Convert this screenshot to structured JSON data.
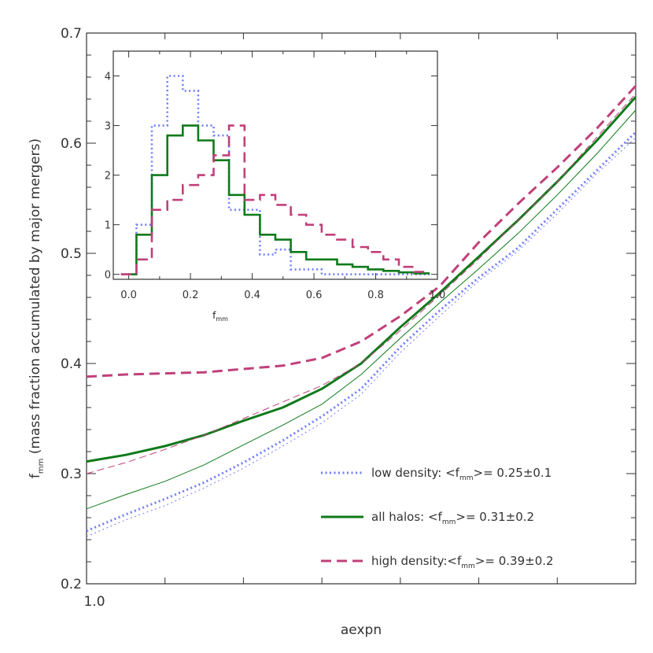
{
  "colors": {
    "low_density": "#6f7dff",
    "all_halos": "#0f7a1a",
    "high_density": "#c0407a",
    "axis": "#333333"
  },
  "chart_data": [
    {
      "type": "line",
      "xlabel": "aexpn",
      "ylabel": "f",
      "ylabel_sub": "mm",
      "ylabel_rest": " (mass fraction accumulated by major mergers)",
      "xlim": [
        1.0,
        8.0
      ],
      "ylim": [
        0.2,
        0.7
      ],
      "x_ticks": [
        {
          "value": 1.0,
          "label": "1.0"
        }
      ],
      "x_minor_ticks": [
        2,
        3,
        4,
        5,
        6,
        7
      ],
      "y_ticks": [
        {
          "value": 0.2,
          "label": "0.2"
        },
        {
          "value": 0.3,
          "label": "0.3"
        },
        {
          "value": 0.4,
          "label": "0.4"
        },
        {
          "value": 0.5,
          "label": "0.5"
        },
        {
          "value": 0.6,
          "label": "0.6"
        },
        {
          "value": 0.7,
          "label": "0.7"
        }
      ],
      "x": [
        1.0,
        1.5,
        2.0,
        2.5,
        3.0,
        3.5,
        4.0,
        4.5,
        5.0,
        5.5,
        6.0,
        6.5,
        7.0,
        7.5,
        8.0
      ],
      "series": [
        {
          "key": "low_density",
          "style": "dotted",
          "weight": "thick",
          "legend_label": "low density: <f",
          "legend_sub": "mm",
          "legend_rest": ">= 0.25±0.1",
          "values": [
            0.248,
            0.263,
            0.277,
            0.292,
            0.31,
            0.33,
            0.352,
            0.377,
            0.415,
            0.448,
            0.478,
            0.505,
            0.54,
            0.575,
            0.61
          ]
        },
        {
          "key": "low_density",
          "style": "dotted",
          "weight": "thin",
          "values": [
            0.243,
            0.258,
            0.271,
            0.287,
            0.305,
            0.325,
            0.346,
            0.372,
            0.41,
            0.443,
            0.475,
            0.502,
            0.536,
            0.572,
            0.605
          ]
        },
        {
          "key": "all_halos",
          "style": "solid",
          "weight": "thick",
          "legend_label": "all halos:    <f",
          "legend_sub": "mm",
          "legend_rest": ">= 0.31±0.2",
          "values": [
            0.311,
            0.317,
            0.325,
            0.335,
            0.348,
            0.36,
            0.377,
            0.4,
            0.433,
            0.464,
            0.497,
            0.53,
            0.565,
            0.602,
            0.642
          ]
        },
        {
          "key": "all_halos",
          "style": "solid",
          "weight": "thin",
          "values": [
            0.268,
            0.281,
            0.293,
            0.308,
            0.326,
            0.344,
            0.363,
            0.39,
            0.423,
            0.455,
            0.486,
            0.518,
            0.553,
            0.59,
            0.63
          ]
        },
        {
          "key": "high_density",
          "style": "dashed",
          "weight": "thick",
          "legend_label": "high density:<f",
          "legend_sub": "mm",
          "legend_rest": ">= 0.39±0.2",
          "values": [
            0.388,
            0.39,
            0.391,
            0.392,
            0.395,
            0.398,
            0.405,
            0.42,
            0.443,
            0.47,
            0.51,
            0.545,
            0.578,
            0.613,
            0.652
          ]
        },
        {
          "key": "high_density",
          "style": "dashed",
          "weight": "thin",
          "values": [
            0.3,
            0.31,
            0.322,
            0.335,
            0.35,
            0.365,
            0.38,
            0.4,
            0.43,
            0.462,
            0.495,
            0.53,
            0.565,
            0.605,
            0.645
          ]
        }
      ]
    },
    {
      "type": "histogram",
      "xlabel": "f",
      "xlabel_sub": "mm",
      "xlim": [
        -0.05,
        1.0
      ],
      "ylim": [
        -0.1,
        4.5
      ],
      "x_ticks": [
        {
          "value": 0.0,
          "label": "0.0"
        },
        {
          "value": 0.2,
          "label": "0.2"
        },
        {
          "value": 0.4,
          "label": "0.4"
        },
        {
          "value": 0.6,
          "label": "0.6"
        },
        {
          "value": 0.8,
          "label": "0.8"
        },
        {
          "value": 1.0,
          "label": "1.0"
        }
      ],
      "y_ticks": [
        {
          "value": 0,
          "label": "0"
        },
        {
          "value": 1,
          "label": "1"
        },
        {
          "value": 2,
          "label": "2"
        },
        {
          "value": 3,
          "label": "3"
        },
        {
          "value": 4,
          "label": "4"
        }
      ],
      "bin_edges": [
        -0.025,
        0.025,
        0.075,
        0.125,
        0.175,
        0.225,
        0.275,
        0.325,
        0.375,
        0.425,
        0.475,
        0.525,
        0.575,
        0.625,
        0.675,
        0.725,
        0.775,
        0.825,
        0.875,
        0.925,
        0.975
      ],
      "series": [
        {
          "key": "low_density",
          "style": "dotted",
          "values": [
            0.0,
            1.0,
            3.0,
            4.0,
            3.7,
            3.0,
            2.8,
            1.3,
            1.3,
            0.4,
            0.5,
            0.1,
            0.1,
            0.0,
            0.0,
            0.0,
            0.0,
            0.0,
            0.0,
            0.0
          ]
        },
        {
          "key": "all_halos",
          "style": "solid",
          "values": [
            0.0,
            0.8,
            2.0,
            2.8,
            3.0,
            2.7,
            2.3,
            1.6,
            1.2,
            0.8,
            0.7,
            0.45,
            0.3,
            0.3,
            0.2,
            0.15,
            0.1,
            0.07,
            0.04,
            0.02
          ]
        },
        {
          "key": "high_density",
          "style": "dashed",
          "values": [
            0.0,
            0.3,
            1.3,
            1.5,
            1.8,
            2.0,
            2.4,
            3.0,
            1.5,
            1.6,
            1.4,
            1.2,
            1.0,
            0.8,
            0.7,
            0.55,
            0.45,
            0.3,
            0.15,
            0.05
          ]
        }
      ]
    }
  ]
}
